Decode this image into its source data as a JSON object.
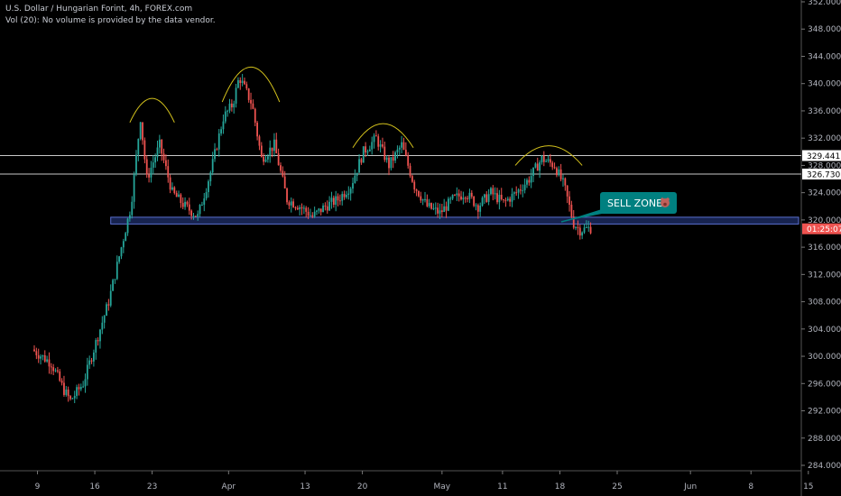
{
  "legend": {
    "title": "U.S. Dollar / Hungarian Forint, 4h, FOREX.com",
    "volume_note": "Vol (20): No volume is provided by the data vendor."
  },
  "annotation": {
    "label": "SELL ZONE",
    "icon": "bear-icon",
    "bg_color": "#008080"
  },
  "colors": {
    "up": "#26a69a",
    "down": "#ef5350",
    "zone": "#2a3f8f",
    "arc": "#d4c21c",
    "lines": "#c8c8c8"
  },
  "chart_data": {
    "type": "candlestick",
    "ylim": [
      282,
      352
    ],
    "yticks": [
      "352.000",
      "348.000",
      "344.000",
      "340.000",
      "336.000",
      "332.000",
      "328.000",
      "324.000",
      "320.000",
      "316.000",
      "312.000",
      "308.000",
      "304.000",
      "300.000",
      "296.000",
      "292.000",
      "288.000",
      "284.000"
    ],
    "xticks": [
      {
        "label": "9",
        "t": 0.05
      },
      {
        "label": "16",
        "t": 0.95
      },
      {
        "label": "23",
        "t": 1.85
      },
      {
        "label": "Apr",
        "t": 3.05
      },
      {
        "label": "13",
        "t": 4.25
      },
      {
        "label": "20",
        "t": 5.15
      },
      {
        "label": "May",
        "t": 6.4
      },
      {
        "label": "11",
        "t": 7.35
      },
      {
        "label": "18",
        "t": 8.25
      },
      {
        "label": "25",
        "t": 9.15
      },
      {
        "label": "Jun",
        "t": 10.3
      },
      {
        "label": "8",
        "t": 11.25
      },
      {
        "label": "15",
        "t": 12.15
      }
    ],
    "price_path": [
      [
        0,
        301
      ],
      [
        0.3,
        299
      ],
      [
        0.5,
        295
      ],
      [
        0.6,
        293.5
      ],
      [
        0.8,
        296
      ],
      [
        1.0,
        302
      ],
      [
        1.2,
        308
      ],
      [
        1.4,
        316
      ],
      [
        1.55,
        322
      ],
      [
        1.7,
        335
      ],
      [
        1.8,
        326
      ],
      [
        2.0,
        331
      ],
      [
        2.2,
        324
      ],
      [
        2.4,
        322
      ],
      [
        2.6,
        320.5
      ],
      [
        2.8,
        327
      ],
      [
        3.0,
        335
      ],
      [
        3.15,
        337
      ],
      [
        3.25,
        341
      ],
      [
        3.45,
        337
      ],
      [
        3.6,
        329
      ],
      [
        3.8,
        331
      ],
      [
        4.0,
        323
      ],
      [
        4.2,
        322
      ],
      [
        4.4,
        320.5
      ],
      [
        4.6,
        322
      ],
      [
        4.8,
        323
      ],
      [
        5.0,
        325
      ],
      [
        5.2,
        330
      ],
      [
        5.4,
        332
      ],
      [
        5.6,
        328
      ],
      [
        5.8,
        331
      ],
      [
        6.0,
        325
      ],
      [
        6.2,
        322
      ],
      [
        6.4,
        321
      ],
      [
        6.6,
        323
      ],
      [
        6.8,
        324
      ],
      [
        7.0,
        322
      ],
      [
        7.2,
        324
      ],
      [
        7.4,
        322.5
      ],
      [
        7.6,
        324
      ],
      [
        7.8,
        326
      ],
      [
        8.0,
        329
      ],
      [
        8.2,
        328
      ],
      [
        8.35,
        325
      ],
      [
        8.5,
        319.5
      ],
      [
        8.6,
        318.5
      ],
      [
        8.75,
        318.8
      ]
    ],
    "resistance_lines": [
      329.441,
      326.73
    ],
    "support_zone": [
      319.4,
      320.4
    ],
    "price_labels": [
      {
        "value": "329.441",
        "y": 329.441,
        "style": "white"
      },
      {
        "value": "328.000",
        "y": 328.0,
        "style": "tick"
      },
      {
        "value": "326.730",
        "y": 326.73,
        "style": "white"
      },
      {
        "value": "320.000",
        "y": 320.0,
        "style": "tick"
      },
      {
        "value": "01:25:07",
        "y": 318.7,
        "style": "red"
      }
    ],
    "arcs": [
      {
        "t0": 1.5,
        "t1": 2.2,
        "y": 336.5,
        "h": 2.2
      },
      {
        "t0": 2.95,
        "t1": 3.85,
        "y": 340.5,
        "h": 3.2
      },
      {
        "t0": 5.0,
        "t1": 5.95,
        "y": 332.8,
        "h": 2.2
      },
      {
        "t0": 7.55,
        "t1": 8.6,
        "y": 329.8,
        "h": 1.8
      }
    ]
  }
}
